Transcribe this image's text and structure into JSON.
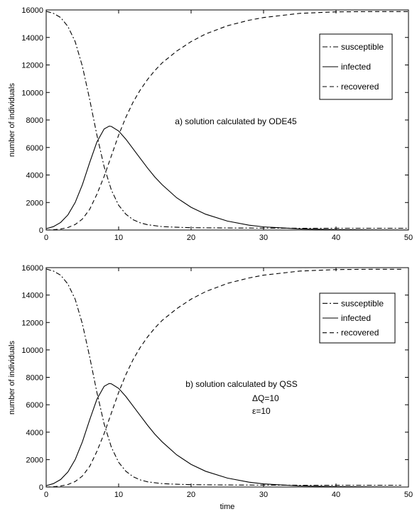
{
  "chart_data": [
    {
      "type": "line",
      "title": "",
      "xlabel": "",
      "ylabel": "number of individuals",
      "xlim": [
        0,
        50
      ],
      "ylim": [
        0,
        16000
      ],
      "xticks": [
        "0",
        "10",
        "20",
        "30",
        "40",
        "50"
      ],
      "yticks": [
        "0",
        "2000",
        "4000",
        "6000",
        "8000",
        "10000",
        "12000",
        "14000",
        "16000"
      ],
      "grid": false,
      "legend_position": "top-right",
      "annotations": [
        "a) solution calculated by ODE45"
      ],
      "series": [
        {
          "name": "susceptible",
          "style": "dash-dot",
          "x": [
            0,
            1,
            2,
            3,
            4,
            5,
            6,
            7,
            8,
            9,
            10,
            11,
            12,
            13,
            14,
            16,
            18,
            20,
            25,
            30,
            35,
            40,
            45,
            50
          ],
          "y": [
            15900,
            15750,
            15450,
            14800,
            13700,
            11900,
            9500,
            6900,
            4600,
            2900,
            1800,
            1150,
            750,
            520,
            380,
            250,
            200,
            170,
            150,
            140,
            130,
            130,
            130,
            130
          ]
        },
        {
          "name": "infected",
          "style": "solid",
          "x": [
            0,
            1,
            2,
            3,
            4,
            5,
            6,
            7,
            8,
            8.7,
            9,
            10,
            11,
            12,
            13,
            14,
            15,
            16,
            18,
            20,
            22,
            25,
            28,
            30,
            35,
            40,
            45,
            50
          ],
          "y": [
            100,
            250,
            550,
            1100,
            2000,
            3300,
            4900,
            6400,
            7350,
            7550,
            7530,
            7200,
            6600,
            5900,
            5200,
            4500,
            3850,
            3300,
            2350,
            1650,
            1150,
            650,
            350,
            230,
            80,
            30,
            10,
            5
          ]
        },
        {
          "name": "recovered",
          "style": "dashed",
          "x": [
            0,
            1,
            2,
            3,
            4,
            5,
            6,
            7,
            8,
            9,
            10,
            11,
            12,
            13,
            14,
            15,
            16,
            18,
            20,
            22,
            25,
            28,
            30,
            35,
            40,
            45,
            50
          ],
          "y": [
            0,
            20,
            70,
            180,
            400,
            800,
            1500,
            2600,
            3900,
            5400,
            6900,
            8200,
            9300,
            10200,
            10950,
            11600,
            12150,
            13000,
            13700,
            14250,
            14850,
            15250,
            15450,
            15750,
            15860,
            15880,
            15880
          ]
        }
      ]
    },
    {
      "type": "line",
      "title": "",
      "xlabel": "time",
      "ylabel": "number of individuals",
      "xlim": [
        0,
        50
      ],
      "ylim": [
        0,
        16000
      ],
      "xticks": [
        "0",
        "10",
        "20",
        "30",
        "40",
        "50"
      ],
      "yticks": [
        "0",
        "2000",
        "4000",
        "6000",
        "8000",
        "10000",
        "12000",
        "14000",
        "16000"
      ],
      "grid": false,
      "legend_position": "top-right",
      "annotations": [
        "b) solution calculated by QSS",
        "ΔQ=10",
        "ε=10"
      ],
      "series": [
        {
          "name": "susceptible",
          "style": "dash-dot",
          "x": [
            0,
            1,
            2,
            3,
            4,
            5,
            6,
            7,
            8,
            9,
            10,
            11,
            12,
            13,
            14,
            16,
            18,
            20,
            25,
            30,
            35,
            40,
            45,
            49
          ],
          "y": [
            15900,
            15750,
            15450,
            14800,
            13700,
            11900,
            9500,
            6900,
            4600,
            2900,
            1800,
            1150,
            750,
            520,
            380,
            250,
            200,
            170,
            150,
            140,
            130,
            130,
            130,
            130
          ]
        },
        {
          "name": "infected",
          "style": "solid",
          "x": [
            0,
            1,
            2,
            3,
            4,
            5,
            6,
            7,
            8,
            8.7,
            9,
            10,
            11,
            12,
            13,
            14,
            15,
            16,
            18,
            20,
            22,
            25,
            28,
            30,
            35,
            40,
            45,
            49
          ],
          "y": [
            100,
            250,
            550,
            1100,
            2000,
            3300,
            4900,
            6400,
            7350,
            7550,
            7530,
            7200,
            6600,
            5900,
            5200,
            4500,
            3850,
            3300,
            2350,
            1650,
            1150,
            650,
            350,
            230,
            80,
            30,
            10,
            5
          ]
        },
        {
          "name": "recovered",
          "style": "dashed",
          "x": [
            0,
            1,
            2,
            3,
            4,
            5,
            6,
            7,
            8,
            9,
            10,
            11,
            12,
            13,
            14,
            15,
            16,
            18,
            20,
            22,
            25,
            28,
            30,
            35,
            40,
            45,
            49
          ],
          "y": [
            0,
            20,
            70,
            180,
            400,
            800,
            1500,
            2600,
            3900,
            5400,
            6900,
            8200,
            9300,
            10200,
            10950,
            11600,
            12150,
            13000,
            13700,
            14250,
            14850,
            15250,
            15450,
            15750,
            15860,
            15880,
            15880
          ]
        }
      ]
    }
  ]
}
